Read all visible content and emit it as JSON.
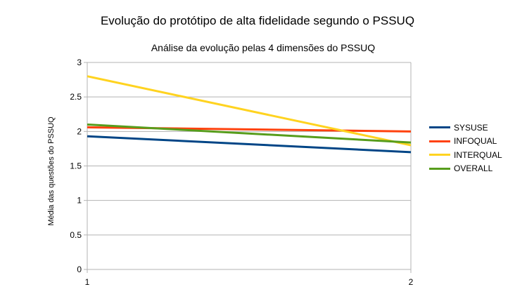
{
  "chart_data": {
    "type": "line",
    "title": "Evolução do protótipo de alta fidelidade segundo o PSSUQ",
    "subtitle": "Análise da evolução pelas 4 dimensões do PSSUQ",
    "xlabel": "",
    "ylabel": "Média das questões do PSSUQ",
    "x": [
      1,
      2
    ],
    "x_tick_labels": [
      "1",
      "2"
    ],
    "ylim": [
      0,
      3
    ],
    "y_ticks": [
      0,
      0.5,
      1,
      1.5,
      2,
      2.5,
      3
    ],
    "y_tick_labels": [
      "0",
      "0.5",
      "1",
      "1.5",
      "2",
      "2.5",
      "3"
    ],
    "grid": true,
    "legend_position": "right",
    "series": [
      {
        "name": "SYSUSE",
        "color": "#004586",
        "values": [
          1.93,
          1.7
        ]
      },
      {
        "name": "INFOQUAL",
        "color": "#ff420e",
        "values": [
          2.06,
          2.0
        ]
      },
      {
        "name": "INTERQUAL",
        "color": "#ffd320",
        "values": [
          2.8,
          1.8
        ]
      },
      {
        "name": "OVERALL",
        "color": "#579d1c",
        "values": [
          2.1,
          1.84
        ]
      }
    ]
  }
}
